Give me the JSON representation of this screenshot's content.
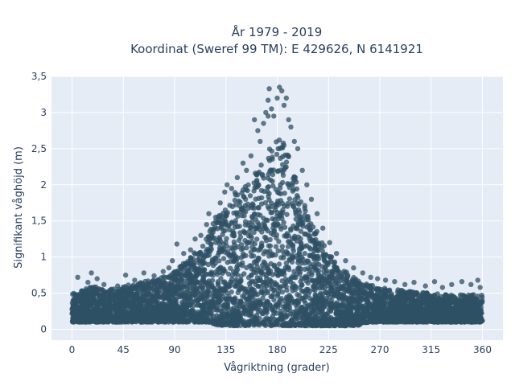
{
  "chart_data": {
    "type": "scatter",
    "title": "År 1979 - 2019",
    "subtitle": "Koordinat (Sweref 99 TM): E 429626, N 6141921",
    "xlabel": "Vågriktning (grader)",
    "ylabel": "Signifikant våghöjd (m)",
    "xlim": [
      -18,
      378
    ],
    "ylim": [
      -0.15,
      3.5
    ],
    "x_ticks": [
      0,
      45,
      90,
      135,
      180,
      225,
      270,
      315,
      360
    ],
    "x_tick_labels": [
      "0",
      "45",
      "90",
      "135",
      "180",
      "225",
      "270",
      "315",
      "360"
    ],
    "y_ticks": [
      0,
      0.5,
      1,
      1.5,
      2,
      2.5,
      3,
      3.5
    ],
    "y_tick_labels": [
      "0",
      "0,5",
      "1",
      "1,5",
      "2",
      "2,5",
      "3",
      "3,5"
    ],
    "grid": true,
    "marker_color": "#2f5064",
    "background_color": "#e5ecf6",
    "envelope": {
      "x": [
        0,
        10,
        20,
        30,
        45,
        60,
        75,
        90,
        100,
        110,
        120,
        130,
        140,
        150,
        160,
        170,
        175,
        180,
        185,
        190,
        195,
        200,
        205,
        210,
        220,
        230,
        240,
        250,
        260,
        270,
        285,
        300,
        315,
        330,
        345,
        360
      ],
      "y_low": [
        0.1,
        0.1,
        0.1,
        0.1,
        0.1,
        0.1,
        0.1,
        0.1,
        0.1,
        0.1,
        0.1,
        0.05,
        0.05,
        0.05,
        0.05,
        0.05,
        0.05,
        0.05,
        0.05,
        0.05,
        0.05,
        0.05,
        0.05,
        0.05,
        0.05,
        0.05,
        0.05,
        0.05,
        0.1,
        0.1,
        0.1,
        0.1,
        0.1,
        0.1,
        0.1,
        0.1
      ],
      "y_high": [
        0.5,
        0.55,
        0.6,
        0.55,
        0.6,
        0.65,
        0.7,
        0.8,
        0.95,
        1.1,
        1.35,
        1.65,
        1.85,
        2.0,
        2.15,
        2.4,
        2.55,
        2.65,
        2.6,
        2.4,
        2.15,
        1.9,
        1.7,
        1.5,
        1.2,
        0.95,
        0.8,
        0.7,
        0.62,
        0.58,
        0.55,
        0.52,
        0.5,
        0.48,
        0.48,
        0.48
      ]
    },
    "outlier_points": [
      {
        "x": 5,
        "y": 0.72
      },
      {
        "x": 14,
        "y": 0.65
      },
      {
        "x": 17,
        "y": 0.78
      },
      {
        "x": 22,
        "y": 0.7
      },
      {
        "x": 28,
        "y": 0.62
      },
      {
        "x": 40,
        "y": 0.6
      },
      {
        "x": 47,
        "y": 0.75
      },
      {
        "x": 55,
        "y": 0.68
      },
      {
        "x": 63,
        "y": 0.78
      },
      {
        "x": 72,
        "y": 0.74
      },
      {
        "x": 80,
        "y": 0.8
      },
      {
        "x": 85,
        "y": 0.85
      },
      {
        "x": 88,
        "y": 0.95
      },
      {
        "x": 92,
        "y": 1.18
      },
      {
        "x": 98,
        "y": 1.05
      },
      {
        "x": 104,
        "y": 1.1
      },
      {
        "x": 108,
        "y": 1.25
      },
      {
        "x": 113,
        "y": 1.3
      },
      {
        "x": 118,
        "y": 1.45
      },
      {
        "x": 120,
        "y": 1.6
      },
      {
        "x": 126,
        "y": 1.55
      },
      {
        "x": 130,
        "y": 1.75
      },
      {
        "x": 134,
        "y": 1.9
      },
      {
        "x": 136,
        "y": 2.0
      },
      {
        "x": 140,
        "y": 1.95
      },
      {
        "x": 145,
        "y": 2.1
      },
      {
        "x": 150,
        "y": 2.3
      },
      {
        "x": 153,
        "y": 2.2
      },
      {
        "x": 157,
        "y": 2.4
      },
      {
        "x": 160,
        "y": 2.9
      },
      {
        "x": 163,
        "y": 2.75
      },
      {
        "x": 165,
        "y": 2.6
      },
      {
        "x": 168,
        "y": 2.85
      },
      {
        "x": 170,
        "y": 3.0
      },
      {
        "x": 172,
        "y": 2.95
      },
      {
        "x": 172,
        "y": 3.17
      },
      {
        "x": 173,
        "y": 3.33
      },
      {
        "x": 175,
        "y": 3.05
      },
      {
        "x": 177,
        "y": 2.95
      },
      {
        "x": 180,
        "y": 3.2
      },
      {
        "x": 182,
        "y": 3.35
      },
      {
        "x": 184,
        "y": 3.3
      },
      {
        "x": 186,
        "y": 3.1
      },
      {
        "x": 188,
        "y": 3.2
      },
      {
        "x": 190,
        "y": 2.9
      },
      {
        "x": 192,
        "y": 2.8
      },
      {
        "x": 195,
        "y": 2.6
      },
      {
        "x": 198,
        "y": 2.5
      },
      {
        "x": 202,
        "y": 2.2
      },
      {
        "x": 206,
        "y": 2.0
      },
      {
        "x": 210,
        "y": 1.8
      },
      {
        "x": 215,
        "y": 1.6
      },
      {
        "x": 220,
        "y": 1.4
      },
      {
        "x": 226,
        "y": 1.2
      },
      {
        "x": 232,
        "y": 1.05
      },
      {
        "x": 240,
        "y": 0.95
      },
      {
        "x": 247,
        "y": 0.85
      },
      {
        "x": 255,
        "y": 0.78
      },
      {
        "x": 262,
        "y": 0.72
      },
      {
        "x": 268,
        "y": 0.7
      },
      {
        "x": 275,
        "y": 0.68
      },
      {
        "x": 283,
        "y": 0.66
      },
      {
        "x": 292,
        "y": 0.62
      },
      {
        "x": 300,
        "y": 0.65
      },
      {
        "x": 310,
        "y": 0.6
      },
      {
        "x": 318,
        "y": 0.66
      },
      {
        "x": 325,
        "y": 0.58
      },
      {
        "x": 333,
        "y": 0.62
      },
      {
        "x": 342,
        "y": 0.66
      },
      {
        "x": 350,
        "y": 0.62
      },
      {
        "x": 356,
        "y": 0.68
      },
      {
        "x": 358,
        "y": 0.58
      }
    ]
  }
}
